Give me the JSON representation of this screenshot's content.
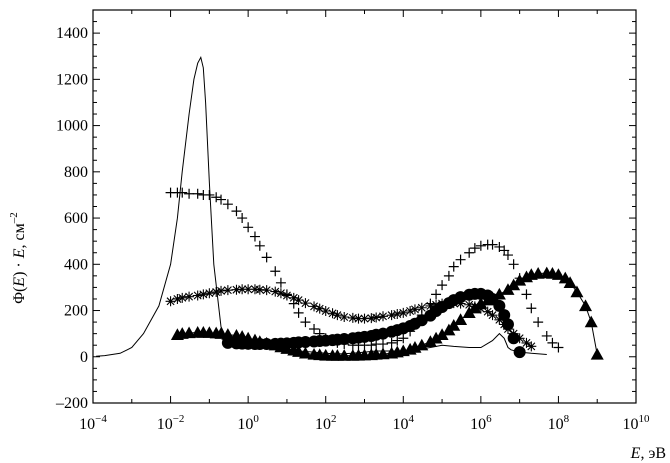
{
  "chart_data": {
    "type": "line",
    "xscale": "log",
    "xlim": [
      0.0001,
      10000000000
    ],
    "ylim": [
      -200,
      1500
    ],
    "xlabel_var": "E",
    "xlabel_unit": ", эВ",
    "ylabel_pre": "Φ(",
    "ylabel_var": "E",
    "ylabel_mid": ") · ",
    "ylabel_var2": "E",
    "ylabel_unit": ", см",
    "ylabel_sup": "–2",
    "y_ticks": [
      {
        "value": -200,
        "label": "–200"
      },
      {
        "value": 0,
        "label": "0"
      },
      {
        "value": 200,
        "label": "200"
      },
      {
        "value": 400,
        "label": "400"
      },
      {
        "value": 600,
        "label": "600"
      },
      {
        "value": 800,
        "label": "800"
      },
      {
        "value": 1000,
        "label": "1000"
      },
      {
        "value": 1200,
        "label": "1200"
      },
      {
        "value": 1400,
        "label": "1400"
      }
    ],
    "x_ticks": [
      {
        "value": 0.0001,
        "base": "10",
        "exp": "−4"
      },
      {
        "value": 0.01,
        "base": "10",
        "exp": "−2"
      },
      {
        "value": 1,
        "base": "10",
        "exp": "0"
      },
      {
        "value": 100,
        "base": "10",
        "exp": "2"
      },
      {
        "value": 10000,
        "base": "10",
        "exp": "4"
      },
      {
        "value": 1000000,
        "base": "10",
        "exp": "6"
      },
      {
        "value": 100000000,
        "base": "10",
        "exp": "8"
      },
      {
        "value": 10000000000,
        "base": "10",
        "exp": "10"
      }
    ],
    "series": [
      {
        "marker": "line",
        "points": [
          [
            0.00012,
            2
          ],
          [
            0.0002,
            5
          ],
          [
            0.0005,
            15
          ],
          [
            0.001,
            40
          ],
          [
            0.002,
            100
          ],
          [
            0.005,
            220
          ],
          [
            0.01,
            400
          ],
          [
            0.015,
            600
          ],
          [
            0.02,
            800
          ],
          [
            0.03,
            1050
          ],
          [
            0.04,
            1200
          ],
          [
            0.05,
            1270
          ],
          [
            0.06,
            1295
          ],
          [
            0.07,
            1250
          ],
          [
            0.08,
            1100
          ],
          [
            0.1,
            750
          ],
          [
            0.13,
            400
          ],
          [
            0.2,
            130
          ],
          [
            0.3,
            70
          ],
          [
            0.5,
            50
          ],
          [
            1,
            45
          ],
          [
            2,
            40
          ],
          [
            5,
            35
          ],
          [
            10,
            30
          ],
          [
            20,
            25
          ],
          [
            50,
            20
          ],
          [
            100,
            15
          ],
          [
            200,
            12
          ],
          [
            500,
            15
          ],
          [
            1000,
            20
          ],
          [
            2000,
            25
          ],
          [
            5000,
            25
          ],
          [
            10000,
            25
          ],
          [
            20000,
            30
          ],
          [
            50000,
            40
          ],
          [
            100000,
            50
          ],
          [
            200000,
            45
          ],
          [
            500000,
            40
          ],
          [
            1000000,
            40
          ],
          [
            2000000,
            70
          ],
          [
            3000000,
            100
          ],
          [
            4000000,
            80
          ],
          [
            5000000,
            40
          ],
          [
            6000000,
            30
          ],
          [
            10000000,
            20
          ],
          [
            20000000,
            15
          ],
          [
            50000000,
            10
          ]
        ]
      },
      {
        "marker": "plus",
        "points": [
          [
            0.01,
            710
          ],
          [
            0.015,
            710
          ],
          [
            0.02,
            710
          ],
          [
            0.03,
            705
          ],
          [
            0.05,
            705
          ],
          [
            0.07,
            700
          ],
          [
            0.1,
            700
          ],
          [
            0.15,
            690
          ],
          [
            0.2,
            680
          ],
          [
            0.3,
            660
          ],
          [
            0.5,
            630
          ],
          [
            0.7,
            600
          ],
          [
            1,
            560
          ],
          [
            1.5,
            520
          ],
          [
            2,
            480
          ],
          [
            3,
            430
          ],
          [
            5,
            370
          ],
          [
            7,
            320
          ],
          [
            10,
            270
          ],
          [
            15,
            230
          ],
          [
            20,
            190
          ],
          [
            30,
            150
          ],
          [
            50,
            120
          ],
          [
            70,
            100
          ],
          [
            100,
            80
          ],
          [
            150,
            70
          ],
          [
            200,
            60
          ],
          [
            300,
            55
          ],
          [
            500,
            50
          ],
          [
            700,
            50
          ],
          [
            1000,
            50
          ],
          [
            1500,
            50
          ],
          [
            2000,
            55
          ],
          [
            3000,
            55
          ],
          [
            5000,
            60
          ],
          [
            7000,
            70
          ],
          [
            10000,
            80
          ],
          [
            15000,
            110
          ],
          [
            20000,
            140
          ],
          [
            30000,
            180
          ],
          [
            50000,
            230
          ],
          [
            70000,
            270
          ],
          [
            100000,
            310
          ],
          [
            150000,
            350
          ],
          [
            200000,
            390
          ],
          [
            300000,
            420
          ],
          [
            500000,
            450
          ],
          [
            700000,
            470
          ],
          [
            1000000,
            480
          ],
          [
            1500000,
            485
          ],
          [
            2000000,
            485
          ],
          [
            3000000,
            475
          ],
          [
            4000000,
            460
          ],
          [
            5000000,
            440
          ],
          [
            7000000,
            400
          ],
          [
            10000000,
            340
          ],
          [
            15000000,
            270
          ],
          [
            20000000,
            210
          ],
          [
            30000000,
            150
          ],
          [
            50000000,
            90
          ],
          [
            70000000,
            60
          ],
          [
            100000000,
            40
          ]
        ]
      },
      {
        "marker": "star",
        "points": [
          [
            0.01,
            240
          ],
          [
            0.015,
            250
          ],
          [
            0.02,
            255
          ],
          [
            0.03,
            260
          ],
          [
            0.05,
            265
          ],
          [
            0.07,
            270
          ],
          [
            0.1,
            275
          ],
          [
            0.15,
            280
          ],
          [
            0.2,
            285
          ],
          [
            0.3,
            288
          ],
          [
            0.5,
            290
          ],
          [
            0.7,
            292
          ],
          [
            1,
            292
          ],
          [
            1.5,
            292
          ],
          [
            2,
            290
          ],
          [
            3,
            288
          ],
          [
            5,
            282
          ],
          [
            7,
            275
          ],
          [
            10,
            265
          ],
          [
            15,
            255
          ],
          [
            20,
            245
          ],
          [
            30,
            232
          ],
          [
            50,
            218
          ],
          [
            70,
            208
          ],
          [
            100,
            198
          ],
          [
            150,
            188
          ],
          [
            200,
            180
          ],
          [
            300,
            172
          ],
          [
            500,
            168
          ],
          [
            700,
            165
          ],
          [
            1000,
            165
          ],
          [
            1500,
            167
          ],
          [
            2000,
            170
          ],
          [
            3000,
            175
          ],
          [
            5000,
            180
          ],
          [
            7000,
            185
          ],
          [
            10000,
            190
          ],
          [
            15000,
            198
          ],
          [
            20000,
            205
          ],
          [
            30000,
            212
          ],
          [
            50000,
            220
          ],
          [
            70000,
            225
          ],
          [
            100000,
            230
          ],
          [
            150000,
            232
          ],
          [
            200000,
            232
          ],
          [
            300000,
            230
          ],
          [
            500000,
            225
          ],
          [
            700000,
            218
          ],
          [
            1000000,
            208
          ],
          [
            1500000,
            195
          ],
          [
            2000000,
            180
          ],
          [
            3000000,
            160
          ],
          [
            4000000,
            140
          ],
          [
            5000000,
            120
          ],
          [
            7000000,
            100
          ],
          [
            10000000,
            80
          ],
          [
            15000000,
            60
          ],
          [
            20000000,
            45
          ]
        ]
      },
      {
        "marker": "circle",
        "points": [
          [
            0.3,
            60
          ],
          [
            0.5,
            58
          ],
          [
            0.7,
            57
          ],
          [
            1,
            56
          ],
          [
            1.5,
            55
          ],
          [
            2,
            55
          ],
          [
            3,
            55
          ],
          [
            5,
            56
          ],
          [
            7,
            57
          ],
          [
            10,
            58
          ],
          [
            15,
            60
          ],
          [
            20,
            62
          ],
          [
            30,
            64
          ],
          [
            50,
            66
          ],
          [
            70,
            68
          ],
          [
            100,
            70
          ],
          [
            150,
            72
          ],
          [
            200,
            74
          ],
          [
            300,
            77
          ],
          [
            500,
            80
          ],
          [
            700,
            83
          ],
          [
            1000,
            86
          ],
          [
            1500,
            90
          ],
          [
            2000,
            95
          ],
          [
            3000,
            100
          ],
          [
            5000,
            108
          ],
          [
            7000,
            115
          ],
          [
            10000,
            123
          ],
          [
            15000,
            133
          ],
          [
            20000,
            143
          ],
          [
            30000,
            158
          ],
          [
            50000,
            178
          ],
          [
            70000,
            198
          ],
          [
            100000,
            215
          ],
          [
            150000,
            232
          ],
          [
            200000,
            245
          ],
          [
            300000,
            258
          ],
          [
            500000,
            268
          ],
          [
            700000,
            272
          ],
          [
            1000000,
            272
          ],
          [
            1500000,
            265
          ],
          [
            2000000,
            250
          ],
          [
            3000000,
            220
          ],
          [
            4000000,
            180
          ],
          [
            5000000,
            140
          ],
          [
            7000000,
            80
          ],
          [
            10000000,
            20
          ]
        ]
      },
      {
        "marker": "triangle",
        "points": [
          [
            0.015,
            95
          ],
          [
            0.02,
            100
          ],
          [
            0.03,
            103
          ],
          [
            0.05,
            105
          ],
          [
            0.07,
            105
          ],
          [
            0.1,
            104
          ],
          [
            0.15,
            102
          ],
          [
            0.2,
            100
          ],
          [
            0.3,
            96
          ],
          [
            0.5,
            92
          ],
          [
            0.7,
            87
          ],
          [
            1,
            80
          ],
          [
            1.5,
            72
          ],
          [
            2,
            65
          ],
          [
            3,
            58
          ],
          [
            5,
            50
          ],
          [
            7,
            42
          ],
          [
            10,
            35
          ],
          [
            15,
            28
          ],
          [
            20,
            22
          ],
          [
            30,
            15
          ],
          [
            50,
            10
          ],
          [
            70,
            8
          ],
          [
            100,
            6
          ],
          [
            150,
            5
          ],
          [
            200,
            5
          ],
          [
            300,
            5
          ],
          [
            500,
            5
          ],
          [
            700,
            6
          ],
          [
            1000,
            7
          ],
          [
            1500,
            8
          ],
          [
            2000,
            10
          ],
          [
            3000,
            12
          ],
          [
            5000,
            15
          ],
          [
            7000,
            20
          ],
          [
            10000,
            25
          ],
          [
            15000,
            32
          ],
          [
            20000,
            40
          ],
          [
            30000,
            50
          ],
          [
            50000,
            65
          ],
          [
            70000,
            80
          ],
          [
            100000,
            95
          ],
          [
            150000,
            115
          ],
          [
            200000,
            135
          ],
          [
            300000,
            160
          ],
          [
            500000,
            190
          ],
          [
            700000,
            210
          ],
          [
            1000000,
            230
          ],
          [
            1500000,
            245
          ],
          [
            2000000,
            255
          ],
          [
            3000000,
            270
          ],
          [
            5000000,
            290
          ],
          [
            7000000,
            310
          ],
          [
            10000000,
            330
          ],
          [
            15000000,
            345
          ],
          [
            20000000,
            355
          ],
          [
            30000000,
            360
          ],
          [
            50000000,
            362
          ],
          [
            70000000,
            360
          ],
          [
            100000000,
            355
          ],
          [
            150000000,
            340
          ],
          [
            200000000,
            320
          ],
          [
            300000000,
            280
          ],
          [
            500000000,
            220
          ],
          [
            700000000,
            150
          ],
          [
            1000000000,
            10
          ]
        ]
      }
    ]
  }
}
